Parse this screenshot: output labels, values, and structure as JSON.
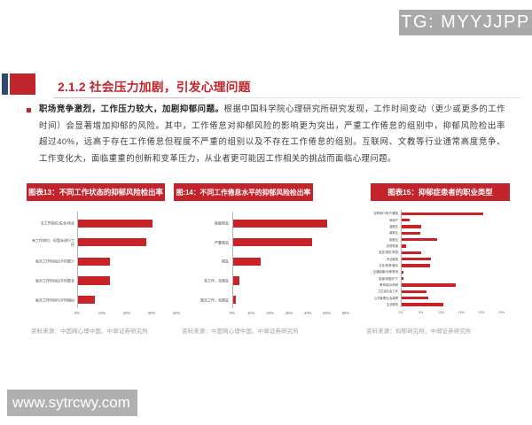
{
  "watermarks": {
    "top_text": "TG: MYYJJPP",
    "bottom_text": "www.sytrcwy.com"
  },
  "header": {
    "title": "2.1.2 社会压力加剧，引发心理问题"
  },
  "paragraph": {
    "lead": "职场竞争激烈，工作压力较大，加剧抑郁问题。",
    "body": "根据中国科学院心理研究所研究发现，工作时间变动（更少或更多的工作时间）会显著增加抑郁的风险。其中，工作倦怠对抑郁风险的影响更为突出，严重工作倦怠的组别中，抑郁风险检出率超过40%，远高于存在工作倦怠但程度不严重的组别以及不存在工作倦怠的组别。互联网、文教等行业通常高度竞争、工作变化大，面临重重的创新和变革压力，从业者更可能因工作相关的挑战而面临心理问题。",
    "lines": [
      {
        "bold": "职场竞争激烈，工作压力较大，加剧抑郁问题。",
        "text": "根据中国科学院心理研究所研究发现，工作时间变动（更少或更多的工作"
      },
      {
        "bold": "",
        "text": "时间）会显著增加抑郁的风险。其中，工作倦怠对抑郁风险的影响更为突出，严重工作倦怠的组别中，抑郁风险检出率"
      },
      {
        "bold": "",
        "text": "超过40%，远高于存在工作倦怠但程度不严重的组别以及不存在工作倦怠的组别。互联网、文教等行业通常高度竞争、"
      },
      {
        "bold": "",
        "text": "工作变化大，面临重重的创新和变革压力，从业者更可能因工作相关的挑战而面临心理问题。"
      }
    ]
  },
  "accent_color": "#c9232a",
  "chart_data": [
    {
      "type": "bar",
      "orientation": "horizontal",
      "title": "图表13：不同工作状态的抑郁风险检出率",
      "categories": [
        "无工作岗位/失业/待业",
        "有工作岗位、但暂未进行工作",
        "每天工作时间比平时更少",
        "每天工作时间比平时更长",
        "每天工作时间与平时相似"
      ],
      "values": [
        30,
        27.5,
        13,
        13,
        7
      ],
      "xlim": [
        0,
        40
      ],
      "xticks": [
        0,
        10,
        20,
        30,
        40
      ],
      "xtick_labels": [
        "0%",
        "10%",
        "20%",
        "30%",
        "40%"
      ],
      "source": "资料来源：中国网心理中国、中邮证券研究所"
    },
    {
      "type": "bar",
      "orientation": "horizontal",
      "title": "图:14：不同工作倦怠水平的抑郁风险检出率",
      "categories": [
        "极度倦怠",
        "严重倦怠",
        "倦怠",
        "有工作，无倦怠",
        "暂无工作，无倦怠"
      ],
      "values": [
        50,
        42,
        15,
        3.5,
        1.5
      ],
      "xlim": [
        0,
        60
      ],
      "xticks": [
        0,
        10,
        20,
        30,
        40,
        50,
        60
      ],
      "xtick_labels": [
        "0%",
        "10%",
        "20%",
        "30%",
        "40%",
        "50%",
        "60%"
      ],
      "source": "资料来源：中国网心理中国、中邮证券研究所"
    },
    {
      "type": "bar",
      "orientation": "horizontal",
      "title": "图表15：抑郁症患者的职业类型",
      "categories": [
        "互联网IT/电子/通信",
        "房地产",
        "金融业",
        "建筑业",
        "制造业",
        "农林牧渔",
        "批发/零售/贸易",
        "专业服务",
        "文化/体育/娱乐",
        "交通运输/仓储/物流",
        "能源/采掘/矿产",
        "教育培训/科研",
        "卫生及社会工作",
        "公共管理/社会保障",
        "生活服务"
      ],
      "values": [
        20.4,
        2,
        4.9,
        4.7,
        9,
        1.3,
        5,
        7.4,
        7.2,
        0.5,
        0.5,
        13.6,
        6.2,
        6.7,
        10.5
      ],
      "xlim": [
        0,
        25
      ],
      "xticks": [
        0,
        5,
        10,
        15,
        20,
        25
      ],
      "xtick_labels": [
        "0%",
        "5%",
        "10%",
        "15%",
        "20%",
        "25%"
      ],
      "source": "资料来源：抑郁研究所、中邮证券研究所"
    }
  ]
}
